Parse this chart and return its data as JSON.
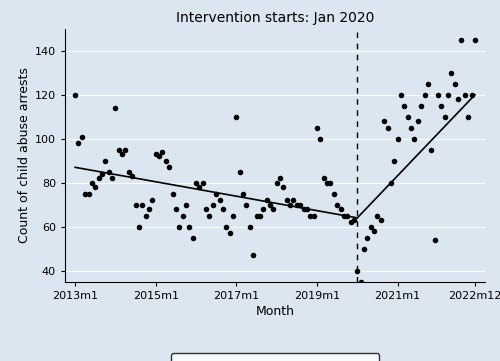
{
  "title": "Intervention starts: Jan 2020",
  "xlabel": "Month",
  "ylabel": "Count of child abuse arrests",
  "xtick_labels": [
    "2013m1",
    "2015m1",
    "2017m1",
    "2019m1",
    "2021m1",
    "2022m12"
  ],
  "xtick_positions": [
    0,
    24,
    48,
    72,
    96,
    119
  ],
  "ylim": [
    35,
    150
  ],
  "yticks": [
    40,
    60,
    80,
    100,
    120,
    140
  ],
  "intervention_x": 84,
  "background_color": "#dce6f0",
  "plot_bg_color": "#dce6f0",
  "pre_trend_start_x": 0,
  "pre_trend_end_x": 84,
  "pre_trend_start_y": 87,
  "pre_trend_end_y": 64,
  "post_trend_start_x": 84,
  "post_trend_end_x": 119,
  "post_trend_start_y": 64,
  "post_trend_end_y": 120,
  "scatter_x": [
    0,
    1,
    2,
    3,
    4,
    5,
    6,
    7,
    8,
    9,
    10,
    11,
    12,
    13,
    14,
    15,
    16,
    17,
    18,
    19,
    20,
    21,
    22,
    23,
    24,
    25,
    26,
    27,
    28,
    29,
    30,
    31,
    32,
    33,
    34,
    35,
    36,
    37,
    38,
    39,
    40,
    41,
    42,
    43,
    44,
    45,
    46,
    47,
    48,
    49,
    50,
    51,
    52,
    53,
    54,
    55,
    56,
    57,
    58,
    59,
    60,
    61,
    62,
    63,
    64,
    65,
    66,
    67,
    68,
    69,
    70,
    71,
    72,
    73,
    74,
    75,
    76,
    77,
    78,
    79,
    80,
    81,
    82,
    83,
    84,
    85,
    86,
    87,
    88,
    89,
    90,
    91,
    92,
    93,
    94,
    95,
    96,
    97,
    98,
    99,
    100,
    101,
    102,
    103,
    104,
    105,
    106,
    107,
    108,
    109,
    110,
    111,
    112,
    113,
    114,
    115,
    116,
    117,
    118,
    119
  ],
  "scatter_y": [
    120,
    98,
    101,
    75,
    75,
    80,
    78,
    82,
    84,
    90,
    85,
    82,
    114,
    95,
    93,
    95,
    85,
    83,
    70,
    60,
    70,
    65,
    68,
    72,
    93,
    92,
    94,
    90,
    87,
    75,
    68,
    60,
    65,
    70,
    60,
    55,
    80,
    78,
    80,
    68,
    65,
    70,
    75,
    72,
    68,
    60,
    57,
    65,
    110,
    85,
    75,
    70,
    60,
    47,
    65,
    65,
    68,
    72,
    70,
    68,
    80,
    82,
    78,
    72,
    70,
    72,
    70,
    70,
    68,
    68,
    65,
    65,
    105,
    100,
    82,
    80,
    80,
    75,
    70,
    68,
    65,
    65,
    62,
    63,
    40,
    35,
    50,
    55,
    60,
    58,
    65,
    63,
    108,
    105,
    80,
    90,
    100,
    120,
    115,
    110,
    105,
    100,
    108,
    115,
    120,
    125,
    95,
    54,
    120,
    115,
    110,
    120,
    130,
    125,
    118,
    145,
    120,
    110,
    120,
    145
  ]
}
